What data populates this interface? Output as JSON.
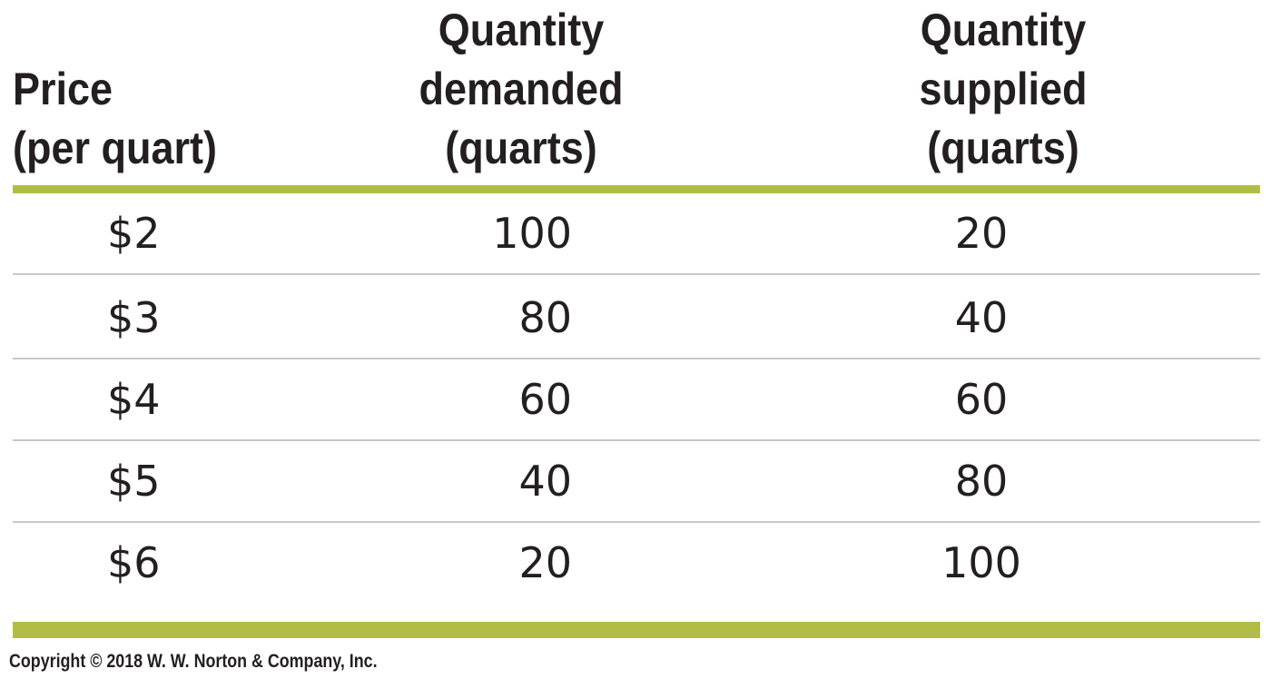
{
  "chart_data": {
    "type": "table",
    "columns": [
      "Price\n(per quart)",
      "Quantity\ndemanded\n(quarts)",
      "Quantity\nsupplied\n(quarts)"
    ],
    "rows": [
      [
        "$2",
        "100",
        "20"
      ],
      [
        "$3",
        "80",
        "40"
      ],
      [
        "$4",
        "60",
        "60"
      ],
      [
        "$5",
        "40",
        "80"
      ],
      [
        "$6",
        "20",
        "100"
      ]
    ],
    "price": [
      2,
      3,
      4,
      5,
      6
    ],
    "quantity_demanded": [
      100,
      80,
      60,
      40,
      20
    ],
    "quantity_supplied": [
      20,
      40,
      60,
      80,
      100
    ]
  },
  "copyright": "Copyright © 2018 W. W. Norton & Company, Inc.",
  "colors": {
    "accent_rule": "#b1bd46",
    "row_divider": "#c8c8c8",
    "text": "#231f20"
  }
}
